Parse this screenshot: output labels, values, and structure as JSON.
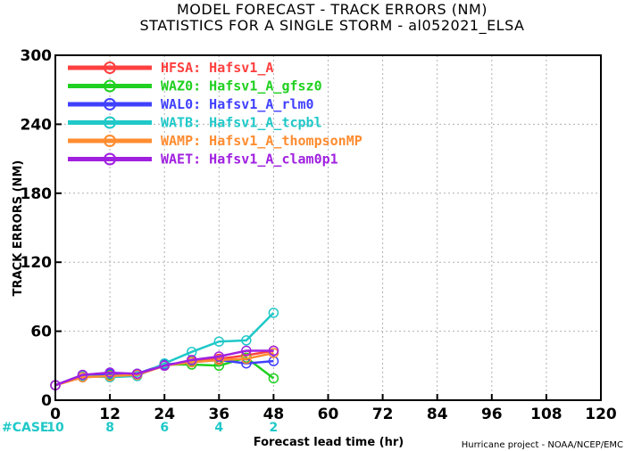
{
  "chart_data": {
    "type": "line",
    "title": "MODEL FORECAST - TRACK ERRORS (NM)",
    "subtitle": "STATISTICS FOR A SINGLE STORM - al052021_ELSA",
    "xlabel": "Forecast lead time (hr)",
    "ylabel": "TRACK ERRORS (NM)",
    "xlim": [
      0,
      120
    ],
    "ylim": [
      0,
      300
    ],
    "x_ticks": [
      "0",
      "12",
      "24",
      "36",
      "48",
      "60",
      "72",
      "84",
      "96",
      "108",
      "120"
    ],
    "y_ticks": [
      "0",
      "60",
      "120",
      "180",
      "240",
      "300"
    ],
    "grid": true,
    "legend_position": "top-left",
    "x": [
      0,
      6,
      12,
      18,
      24,
      30,
      36,
      42,
      48
    ],
    "series": [
      {
        "name": "HFSA:  Hafsv1_A",
        "color": "#ff4040",
        "values": [
          13,
          20,
          21,
          22,
          30,
          34,
          36,
          39,
          43
        ]
      },
      {
        "name": "WAZ0:  Hafsv1_A_gfsz0",
        "color": "#20d020",
        "values": [
          13,
          21,
          22,
          23,
          31,
          31,
          30,
          37,
          19
        ]
      },
      {
        "name": "WAL0:  Hafsv1_A_rlm0",
        "color": "#4040ff",
        "values": [
          13,
          22,
          23,
          23,
          31,
          33,
          35,
          32,
          34
        ]
      },
      {
        "name": "WATB:  Hafsv1_A_tcpbl",
        "color": "#20c8c8",
        "values": [
          13,
          21,
          20,
          21,
          32,
          42,
          51,
          52,
          76
        ]
      },
      {
        "name": "WAMP:  Hafsv1_A_thompsonMP",
        "color": "#ff8c30",
        "values": [
          13,
          20,
          21,
          22,
          30,
          33,
          35,
          36,
          41
        ]
      },
      {
        "name": "WAET:  Hafsv1_A_clam0p1",
        "color": "#a020e0",
        "values": [
          13,
          22,
          24,
          23,
          30,
          35,
          38,
          43,
          43
        ]
      }
    ],
    "cases_label": "#CASE",
    "cases": [
      {
        "x": 0,
        "n": "10"
      },
      {
        "x": 12,
        "n": "8"
      },
      {
        "x": 24,
        "n": "6"
      },
      {
        "x": 36,
        "n": "4"
      },
      {
        "x": 48,
        "n": "2"
      }
    ]
  },
  "credit": "Hurricane project - NOAA/NCEP/EMC"
}
